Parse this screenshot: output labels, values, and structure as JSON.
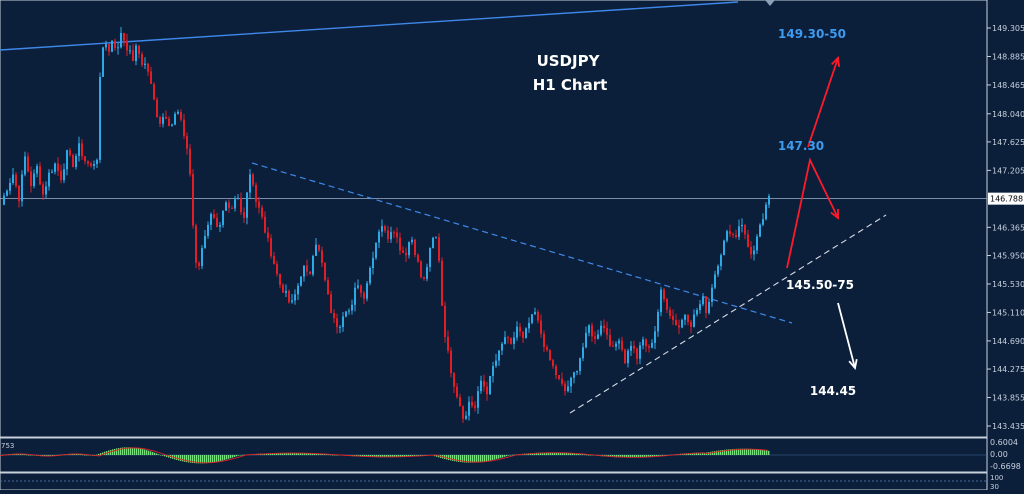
{
  "chart_data": {
    "type": "candlestick",
    "title": "USDJPY",
    "subtitle": "H1 Chart",
    "price_axis": {
      "ticks": [
        "149.305",
        "148.885",
        "148.465",
        "148.040",
        "147.625",
        "147.205",
        "146.365",
        "145.950",
        "145.530",
        "145.110",
        "144.690",
        "144.275",
        "143.855",
        "143.435"
      ],
      "range": [
        143.3,
        149.5
      ],
      "current_price": "146.788"
    },
    "annotations": {
      "target_high": "149.30-50",
      "target_mid": "147.30",
      "support_zone": "145.50-75",
      "target_low": "144.45"
    },
    "oscillator": {
      "label_left": "753",
      "ticks": [
        "0.6004",
        "0.00",
        "-0.6698"
      ],
      "ticks_lower": [
        "100",
        "30"
      ]
    },
    "colors": {
      "background": "#0b1f3a",
      "bull": "#2fa8e6",
      "bear": "#e01e28",
      "trendline": "#3f88ea",
      "arrow_up": "#ff1a2a",
      "arrow_down": "#ffffff",
      "label_blue": "#3d9bf0",
      "hist": "#78e07c"
    },
    "price_path": [
      [
        0,
        146.7
      ],
      [
        6,
        146.95
      ],
      [
        12,
        147.15
      ],
      [
        18,
        146.8
      ],
      [
        24,
        147.4
      ],
      [
        30,
        147.0
      ],
      [
        36,
        147.25
      ],
      [
        42,
        146.85
      ],
      [
        48,
        147.15
      ],
      [
        54,
        147.3
      ],
      [
        60,
        147.1
      ],
      [
        66,
        147.45
      ],
      [
        72,
        147.3
      ],
      [
        78,
        147.55
      ],
      [
        84,
        147.35
      ],
      [
        90,
        147.25
      ],
      [
        96,
        147.4
      ],
      [
        100,
        148.9
      ],
      [
        104,
        149.15
      ],
      [
        108,
        148.95
      ],
      [
        112,
        149.2
      ],
      [
        116,
        148.9
      ],
      [
        120,
        149.25
      ],
      [
        124,
        149.1
      ],
      [
        128,
        148.95
      ],
      [
        132,
        148.85
      ],
      [
        136,
        149.05
      ],
      [
        140,
        148.8
      ],
      [
        146,
        148.75
      ],
      [
        152,
        148.3
      ],
      [
        158,
        147.9
      ],
      [
        164,
        148.05
      ],
      [
        170,
        147.85
      ],
      [
        176,
        148.1
      ],
      [
        182,
        147.8
      ],
      [
        188,
        147.4
      ],
      [
        192,
        146.4
      ],
      [
        196,
        145.6
      ],
      [
        200,
        146.0
      ],
      [
        206,
        146.4
      ],
      [
        212,
        146.6
      ],
      [
        218,
        146.3
      ],
      [
        224,
        146.7
      ],
      [
        230,
        146.55
      ],
      [
        236,
        146.85
      ],
      [
        242,
        146.45
      ],
      [
        246,
        146.9
      ],
      [
        250,
        147.25
      ],
      [
        254,
        146.8
      ],
      [
        260,
        146.55
      ],
      [
        266,
        146.2
      ],
      [
        272,
        145.9
      ],
      [
        278,
        145.55
      ],
      [
        284,
        145.4
      ],
      [
        290,
        145.2
      ],
      [
        296,
        145.45
      ],
      [
        302,
        145.8
      ],
      [
        308,
        145.6
      ],
      [
        314,
        146.2
      ],
      [
        320,
        145.9
      ],
      [
        326,
        145.4
      ],
      [
        332,
        145.0
      ],
      [
        338,
        144.9
      ],
      [
        344,
        145.2
      ],
      [
        350,
        145.1
      ],
      [
        356,
        145.6
      ],
      [
        362,
        145.3
      ],
      [
        368,
        145.7
      ],
      [
        374,
        146.1
      ],
      [
        380,
        146.45
      ],
      [
        386,
        146.2
      ],
      [
        392,
        146.4
      ],
      [
        398,
        146.1
      ],
      [
        404,
        145.95
      ],
      [
        410,
        146.25
      ],
      [
        416,
        145.9
      ],
      [
        422,
        145.5
      ],
      [
        428,
        145.95
      ],
      [
        434,
        146.3
      ],
      [
        438,
        145.9
      ],
      [
        442,
        145.0
      ],
      [
        448,
        144.4
      ],
      [
        454,
        144.0
      ],
      [
        460,
        143.7
      ],
      [
        464,
        143.5
      ],
      [
        468,
        143.8
      ],
      [
        474,
        143.7
      ],
      [
        480,
        144.1
      ],
      [
        486,
        143.95
      ],
      [
        492,
        144.3
      ],
      [
        498,
        144.5
      ],
      [
        504,
        144.75
      ],
      [
        510,
        144.6
      ],
      [
        516,
        144.9
      ],
      [
        522,
        144.7
      ],
      [
        528,
        144.95
      ],
      [
        534,
        145.1
      ],
      [
        540,
        144.8
      ],
      [
        546,
        144.5
      ],
      [
        552,
        144.3
      ],
      [
        558,
        144.1
      ],
      [
        564,
        143.95
      ],
      [
        570,
        144.1
      ],
      [
        576,
        144.3
      ],
      [
        582,
        144.6
      ],
      [
        588,
        144.9
      ],
      [
        594,
        144.7
      ],
      [
        600,
        144.95
      ],
      [
        606,
        144.8
      ],
      [
        612,
        144.55
      ],
      [
        618,
        144.75
      ],
      [
        624,
        144.4
      ],
      [
        630,
        144.65
      ],
      [
        636,
        144.45
      ],
      [
        642,
        144.7
      ],
      [
        648,
        144.55
      ],
      [
        654,
        144.85
      ],
      [
        660,
        145.4
      ],
      [
        666,
        145.2
      ],
      [
        672,
        145.0
      ],
      [
        678,
        144.9
      ],
      [
        684,
        145.1
      ],
      [
        690,
        144.95
      ],
      [
        696,
        145.15
      ],
      [
        702,
        145.3
      ],
      [
        706,
        145.1
      ],
      [
        710,
        145.45
      ],
      [
        716,
        145.8
      ],
      [
        722,
        146.1
      ],
      [
        728,
        146.35
      ],
      [
        734,
        146.2
      ],
      [
        740,
        146.5
      ],
      [
        746,
        146.1
      ],
      [
        752,
        145.95
      ],
      [
        758,
        146.3
      ],
      [
        764,
        146.6
      ],
      [
        768,
        146.79
      ]
    ]
  }
}
